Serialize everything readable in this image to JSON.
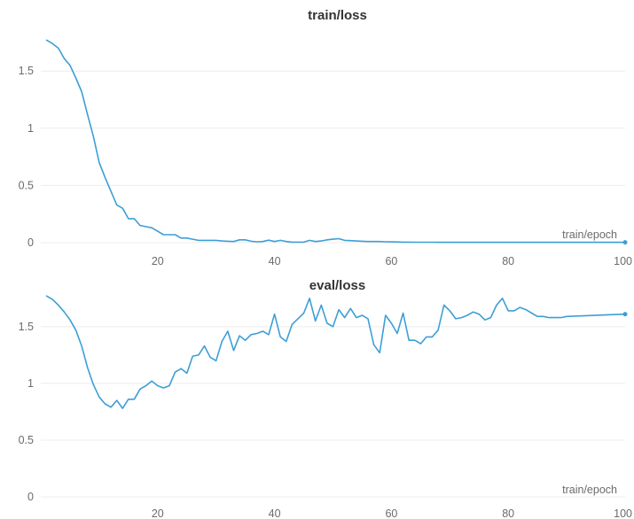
{
  "chart_data": [
    {
      "type": "line",
      "title": "train/loss",
      "xlabel": "train/epoch",
      "ylabel": "",
      "xlim": [
        0,
        100
      ],
      "ylim": [
        0,
        1.85
      ],
      "x_ticks": [
        20,
        40,
        60,
        80,
        100
      ],
      "y_ticks": [
        0,
        0.5,
        1,
        1.5
      ],
      "y_tick_labels": [
        "0",
        "0.5",
        "1",
        "1.5"
      ],
      "grid": true,
      "series": [
        {
          "color": "#3c9fd6",
          "x": [
            1,
            2,
            3,
            4,
            5,
            6,
            7,
            8,
            9,
            10,
            11,
            12,
            13,
            14,
            15,
            16,
            17,
            18,
            19,
            20,
            21,
            22,
            23,
            24,
            25,
            26,
            27,
            28,
            29,
            30,
            31,
            32,
            33,
            34,
            35,
            36,
            37,
            38,
            39,
            40,
            41,
            42,
            43,
            44,
            45,
            46,
            47,
            48,
            49,
            50,
            51,
            52,
            53,
            54,
            55,
            56,
            57,
            58,
            59,
            60,
            61,
            62,
            63,
            64,
            65,
            66,
            67,
            68,
            69,
            70,
            71,
            72,
            73,
            74,
            75,
            76,
            77,
            78,
            79,
            80,
            81,
            82,
            83,
            84,
            85,
            86,
            87,
            88,
            89,
            90,
            91,
            92,
            93,
            94,
            95,
            96,
            97,
            98,
            99,
            100
          ],
          "y": [
            1.77,
            1.74,
            1.7,
            1.61,
            1.55,
            1.44,
            1.32,
            1.12,
            0.93,
            0.7,
            0.57,
            0.45,
            0.33,
            0.3,
            0.21,
            0.21,
            0.15,
            0.14,
            0.13,
            0.1,
            0.07,
            0.07,
            0.07,
            0.04,
            0.04,
            0.03,
            0.02,
            0.02,
            0.02,
            0.02,
            0.015,
            0.012,
            0.01,
            0.025,
            0.025,
            0.012,
            0.008,
            0.01,
            0.022,
            0.01,
            0.02,
            0.01,
            0.005,
            0.005,
            0.005,
            0.02,
            0.01,
            0.015,
            0.025,
            0.03,
            0.035,
            0.02,
            0.018,
            0.015,
            0.012,
            0.01,
            0.01,
            0.01,
            0.008,
            0.007,
            0.006,
            0.005,
            0.005,
            0.004,
            0.004,
            0.004,
            0.004,
            0.003,
            0.003,
            0.003,
            0.003,
            0.003,
            0.003,
            0.003,
            0.003,
            0.003,
            0.003,
            0.003,
            0.003,
            0.003,
            0.003,
            0.003,
            0.003,
            0.003,
            0.003,
            0.003,
            0.003,
            0.003,
            0.003,
            0.003,
            0.003,
            0.003,
            0.003,
            0.003,
            0.003,
            0.003,
            0.003,
            0.003,
            0.003,
            0.003
          ]
        }
      ]
    },
    {
      "type": "line",
      "title": "eval/loss",
      "xlabel": "train/epoch",
      "ylabel": "",
      "xlim": [
        0,
        100
      ],
      "ylim": [
        0,
        1.85
      ],
      "x_ticks": [
        20,
        40,
        60,
        80,
        100
      ],
      "y_ticks": [
        0,
        0.5,
        1,
        1.5
      ],
      "y_tick_labels": [
        "0",
        "0.5",
        "1",
        "1.5"
      ],
      "grid": true,
      "series": [
        {
          "color": "#3c9fd6",
          "x": [
            1,
            2,
            3,
            4,
            5,
            6,
            7,
            8,
            9,
            10,
            11,
            12,
            13,
            14,
            15,
            16,
            17,
            18,
            19,
            20,
            21,
            22,
            23,
            24,
            25,
            26,
            27,
            28,
            29,
            30,
            31,
            32,
            33,
            34,
            35,
            36,
            37,
            38,
            39,
            40,
            41,
            42,
            43,
            44,
            45,
            46,
            47,
            48,
            49,
            50,
            51,
            52,
            53,
            54,
            55,
            56,
            57,
            58,
            59,
            60,
            61,
            62,
            63,
            64,
            65,
            66,
            67,
            68,
            69,
            70,
            71,
            72,
            73,
            74,
            75,
            76,
            77,
            78,
            79,
            80,
            81,
            82,
            83,
            84,
            85,
            86,
            87,
            88,
            89,
            90,
            100
          ],
          "y": [
            1.77,
            1.74,
            1.69,
            1.63,
            1.56,
            1.47,
            1.33,
            1.14,
            0.99,
            0.88,
            0.82,
            0.79,
            0.85,
            0.78,
            0.86,
            0.86,
            0.95,
            0.98,
            1.02,
            0.98,
            0.96,
            0.98,
            1.1,
            1.13,
            1.09,
            1.24,
            1.25,
            1.33,
            1.23,
            1.2,
            1.37,
            1.46,
            1.29,
            1.42,
            1.38,
            1.43,
            1.44,
            1.46,
            1.43,
            1.61,
            1.41,
            1.37,
            1.52,
            1.57,
            1.62,
            1.75,
            1.55,
            1.69,
            1.53,
            1.5,
            1.65,
            1.58,
            1.66,
            1.58,
            1.6,
            1.57,
            1.34,
            1.27,
            1.6,
            1.53,
            1.44,
            1.62,
            1.38,
            1.38,
            1.35,
            1.41,
            1.41,
            1.47,
            1.69,
            1.64,
            1.57,
            1.58,
            1.6,
            1.63,
            1.61,
            1.56,
            1.58,
            1.69,
            1.75,
            1.64,
            1.64,
            1.67,
            1.65,
            1.62,
            1.59,
            1.59,
            1.58,
            1.58,
            1.58,
            1.59,
            1.61
          ]
        }
      ]
    }
  ]
}
